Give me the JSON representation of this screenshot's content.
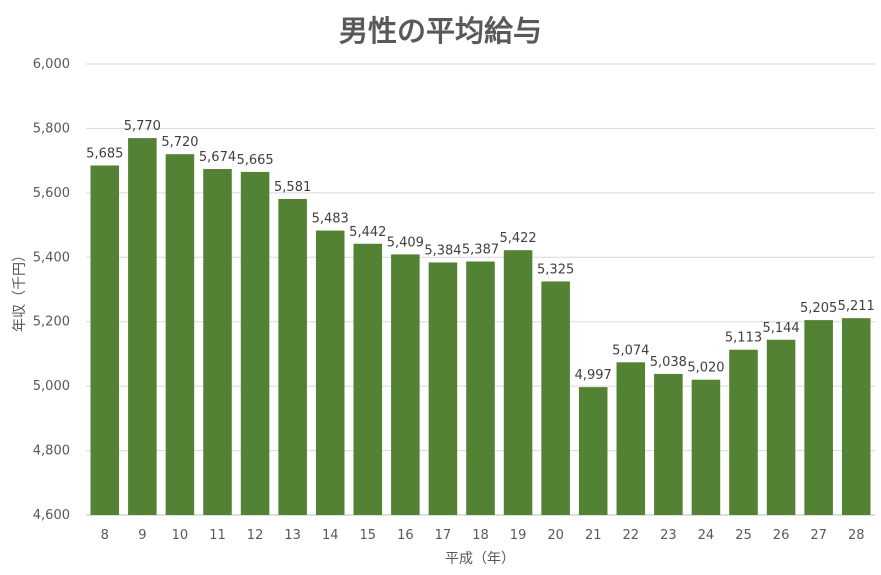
{
  "chart_data": {
    "type": "bar",
    "title": "男性の平均給与",
    "xlabel": "平成（年）",
    "ylabel": "年収（千円）",
    "categories": [
      "8",
      "9",
      "10",
      "11",
      "12",
      "13",
      "14",
      "15",
      "16",
      "17",
      "18",
      "19",
      "20",
      "21",
      "22",
      "23",
      "24",
      "25",
      "26",
      "27",
      "28"
    ],
    "values": [
      5685,
      5770,
      5720,
      5674,
      5665,
      5581,
      5483,
      5442,
      5409,
      5384,
      5387,
      5422,
      5325,
      4997,
      5074,
      5038,
      5020,
      5113,
      5144,
      5205,
      5211
    ],
    "data_labels": [
      "5,685",
      "5,770",
      "5,720",
      "5,674",
      "5,665",
      "5,581",
      "5,483",
      "5,442",
      "5,409",
      "5,384",
      "5,387",
      "5,422",
      "5,325",
      "4,997",
      "5,074",
      "5,038",
      "5,020",
      "5,113",
      "5,144",
      "5,205",
      "5,211"
    ],
    "ylim": [
      4600,
      6000
    ],
    "yticks": [
      4600,
      4800,
      5000,
      5200,
      5400,
      5600,
      5800,
      6000
    ],
    "ytick_labels": [
      "4,600",
      "4,800",
      "5,000",
      "5,200",
      "5,400",
      "5,600",
      "5,800",
      "6,000"
    ],
    "grid": true,
    "legend": "none",
    "bar_color": "#548235"
  }
}
